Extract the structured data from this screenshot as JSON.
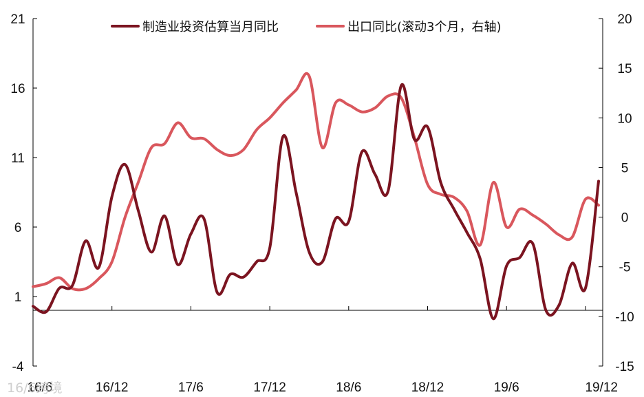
{
  "chart_data": {
    "type": "line",
    "title": "",
    "x_tick_labels": [
      "16/6",
      "16/12",
      "17/6",
      "17/12",
      "18/6",
      "18/12",
      "19/6",
      "19/12"
    ],
    "left_axis": {
      "ylim": [
        -4,
        21
      ],
      "ticks": [
        "21",
        "16",
        "11",
        "6",
        "1",
        "-4"
      ]
    },
    "right_axis": {
      "ylim": [
        -15,
        20
      ],
      "ticks": [
        "20",
        "15",
        "10",
        "5",
        "0",
        "-5",
        "-10",
        "-15"
      ]
    },
    "legend_placement": "top",
    "series": [
      {
        "name": "制造业投资估算当月同比",
        "axis": "left",
        "color": "#7b1420",
        "points": [
          [
            "2016-06",
            0.3
          ],
          [
            "2016-07",
            -0.1
          ],
          [
            "2016-08",
            1.6
          ],
          [
            "2016-09",
            1.8
          ],
          [
            "2016-10",
            5.0
          ],
          [
            "2016-11",
            3.1
          ],
          [
            "2016-12",
            8.2
          ],
          [
            "2017-01",
            10.5
          ],
          [
            "2017-02",
            7.2
          ],
          [
            "2017-03",
            4.2
          ],
          [
            "2017-04",
            6.8
          ],
          [
            "2017-05",
            3.3
          ],
          [
            "2017-06",
            5.5
          ],
          [
            "2017-07",
            6.6
          ],
          [
            "2017-08",
            1.3
          ],
          [
            "2017-09",
            2.6
          ],
          [
            "2017-10",
            2.4
          ],
          [
            "2017-11",
            3.5
          ],
          [
            "2017-12",
            4.5
          ],
          [
            "2018-01",
            12.5
          ],
          [
            "2018-02",
            8.5
          ],
          [
            "2018-03",
            4.2
          ],
          [
            "2018-04",
            3.5
          ],
          [
            "2018-05",
            6.6
          ],
          [
            "2018-06",
            6.4
          ],
          [
            "2018-07",
            11.4
          ],
          [
            "2018-08",
            9.8
          ],
          [
            "2018-09",
            8.6
          ],
          [
            "2018-10",
            16.2
          ],
          [
            "2018-11",
            12.3
          ],
          [
            "2018-12",
            13.2
          ],
          [
            "2019-01",
            9.2
          ],
          [
            "2019-02",
            7.3
          ],
          [
            "2019-03",
            5.6
          ],
          [
            "2019-04",
            3.7
          ],
          [
            "2019-05",
            -0.6
          ],
          [
            "2019-06",
            3.2
          ],
          [
            "2019-07",
            3.8
          ],
          [
            "2019-08",
            4.8
          ],
          [
            "2019-09",
            0.0
          ],
          [
            "2019-10",
            0.4
          ],
          [
            "2019-11",
            3.4
          ],
          [
            "2019-12",
            1.6
          ],
          [
            "2020-01",
            9.3
          ]
        ]
      },
      {
        "name": "出口同比(滚动3个月，右轴)",
        "axis": "right",
        "color": "#d9575d",
        "points": [
          [
            "2016-06",
            -7.0
          ],
          [
            "2016-07",
            -6.7
          ],
          [
            "2016-08",
            -6.1
          ],
          [
            "2016-09",
            -7.2
          ],
          [
            "2016-10",
            -7.2
          ],
          [
            "2016-11",
            -6.2
          ],
          [
            "2016-12",
            -4.5
          ],
          [
            "2017-01",
            0.0
          ],
          [
            "2017-02",
            3.5
          ],
          [
            "2017-03",
            7.0
          ],
          [
            "2017-04",
            7.4
          ],
          [
            "2017-05",
            9.5
          ],
          [
            "2017-06",
            8.0
          ],
          [
            "2017-07",
            7.9
          ],
          [
            "2017-08",
            6.8
          ],
          [
            "2017-09",
            6.2
          ],
          [
            "2017-10",
            6.8
          ],
          [
            "2017-11",
            8.8
          ],
          [
            "2017-12",
            10.0
          ],
          [
            "2018-01",
            11.5
          ],
          [
            "2018-02",
            12.8
          ],
          [
            "2018-03",
            14.2
          ],
          [
            "2018-04",
            7.0
          ],
          [
            "2018-05",
            11.5
          ],
          [
            "2018-06",
            11.3
          ],
          [
            "2018-07",
            10.6
          ],
          [
            "2018-08",
            11.0
          ],
          [
            "2018-09",
            12.2
          ],
          [
            "2018-10",
            12.0
          ],
          [
            "2018-11",
            8.0
          ],
          [
            "2018-12",
            3.3
          ],
          [
            "2019-01",
            2.3
          ],
          [
            "2019-02",
            2.0
          ],
          [
            "2019-03",
            0.6
          ],
          [
            "2019-04",
            -2.8
          ],
          [
            "2019-05",
            3.5
          ],
          [
            "2019-06",
            -1.0
          ],
          [
            "2019-07",
            0.8
          ],
          [
            "2019-08",
            0.2
          ],
          [
            "2019-09",
            -0.7
          ],
          [
            "2019-10",
            -1.8
          ],
          [
            "2019-11",
            -2.0
          ],
          [
            "2019-12",
            1.8
          ],
          [
            "2020-01",
            1.2
          ]
        ]
      }
    ]
  },
  "watermark": {
    "text": "16/6跨境"
  }
}
